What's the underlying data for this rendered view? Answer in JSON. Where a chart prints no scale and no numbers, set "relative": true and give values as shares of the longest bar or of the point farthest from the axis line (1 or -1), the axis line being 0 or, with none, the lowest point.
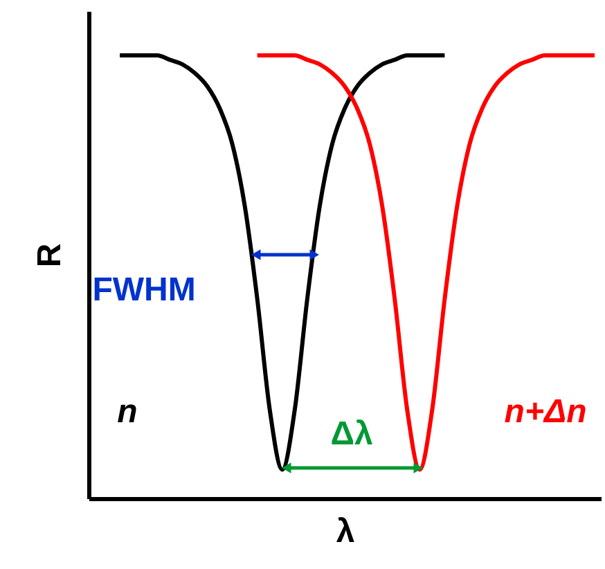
{
  "chart_data": {
    "type": "line",
    "relative": true,
    "xlabel": "λ",
    "ylabel": "R",
    "categories": [
      null,
      null,
      null,
      null,
      null,
      null,
      null,
      null,
      null,
      null,
      null,
      null,
      null,
      null,
      null,
      null,
      null,
      null,
      null,
      null,
      null,
      null,
      null,
      null,
      null,
      null,
      null,
      null,
      null,
      null,
      null,
      null,
      null,
      null,
      null,
      null,
      null,
      null,
      null
    ],
    "series": [
      {
        "name": "n",
        "color": "#000000",
        "values": [
          1,
          1,
          1,
          1,
          0.99,
          0.98,
          0.96,
          0.93,
          0.88,
          0.8,
          0.66,
          0.45,
          0.2,
          0.065,
          0.2,
          0.45,
          0.66,
          0.8,
          0.88,
          0.93,
          0.96,
          0.98,
          0.99,
          1,
          1,
          1,
          1,
          null,
          null,
          null,
          null,
          null,
          null,
          null,
          null,
          null,
          null,
          null,
          null
        ]
      },
      {
        "name": "n+Δn",
        "color": "#ff0000",
        "values": [
          null,
          null,
          null,
          null,
          null,
          null,
          null,
          null,
          null,
          null,
          null,
          1,
          1,
          1,
          1,
          0.99,
          0.98,
          0.96,
          0.93,
          0.88,
          0.8,
          0.66,
          0.45,
          0.2,
          0.065,
          0.2,
          0.45,
          0.66,
          0.8,
          0.88,
          0.93,
          0.96,
          0.98,
          0.99,
          1,
          1,
          1,
          1,
          1
        ]
      }
    ],
    "annotations": [
      "FWHM",
      "Δλ"
    ],
    "grid": false,
    "legend": false,
    "tick_labels": false,
    "line_style": "solid",
    "marker": "none"
  }
}
